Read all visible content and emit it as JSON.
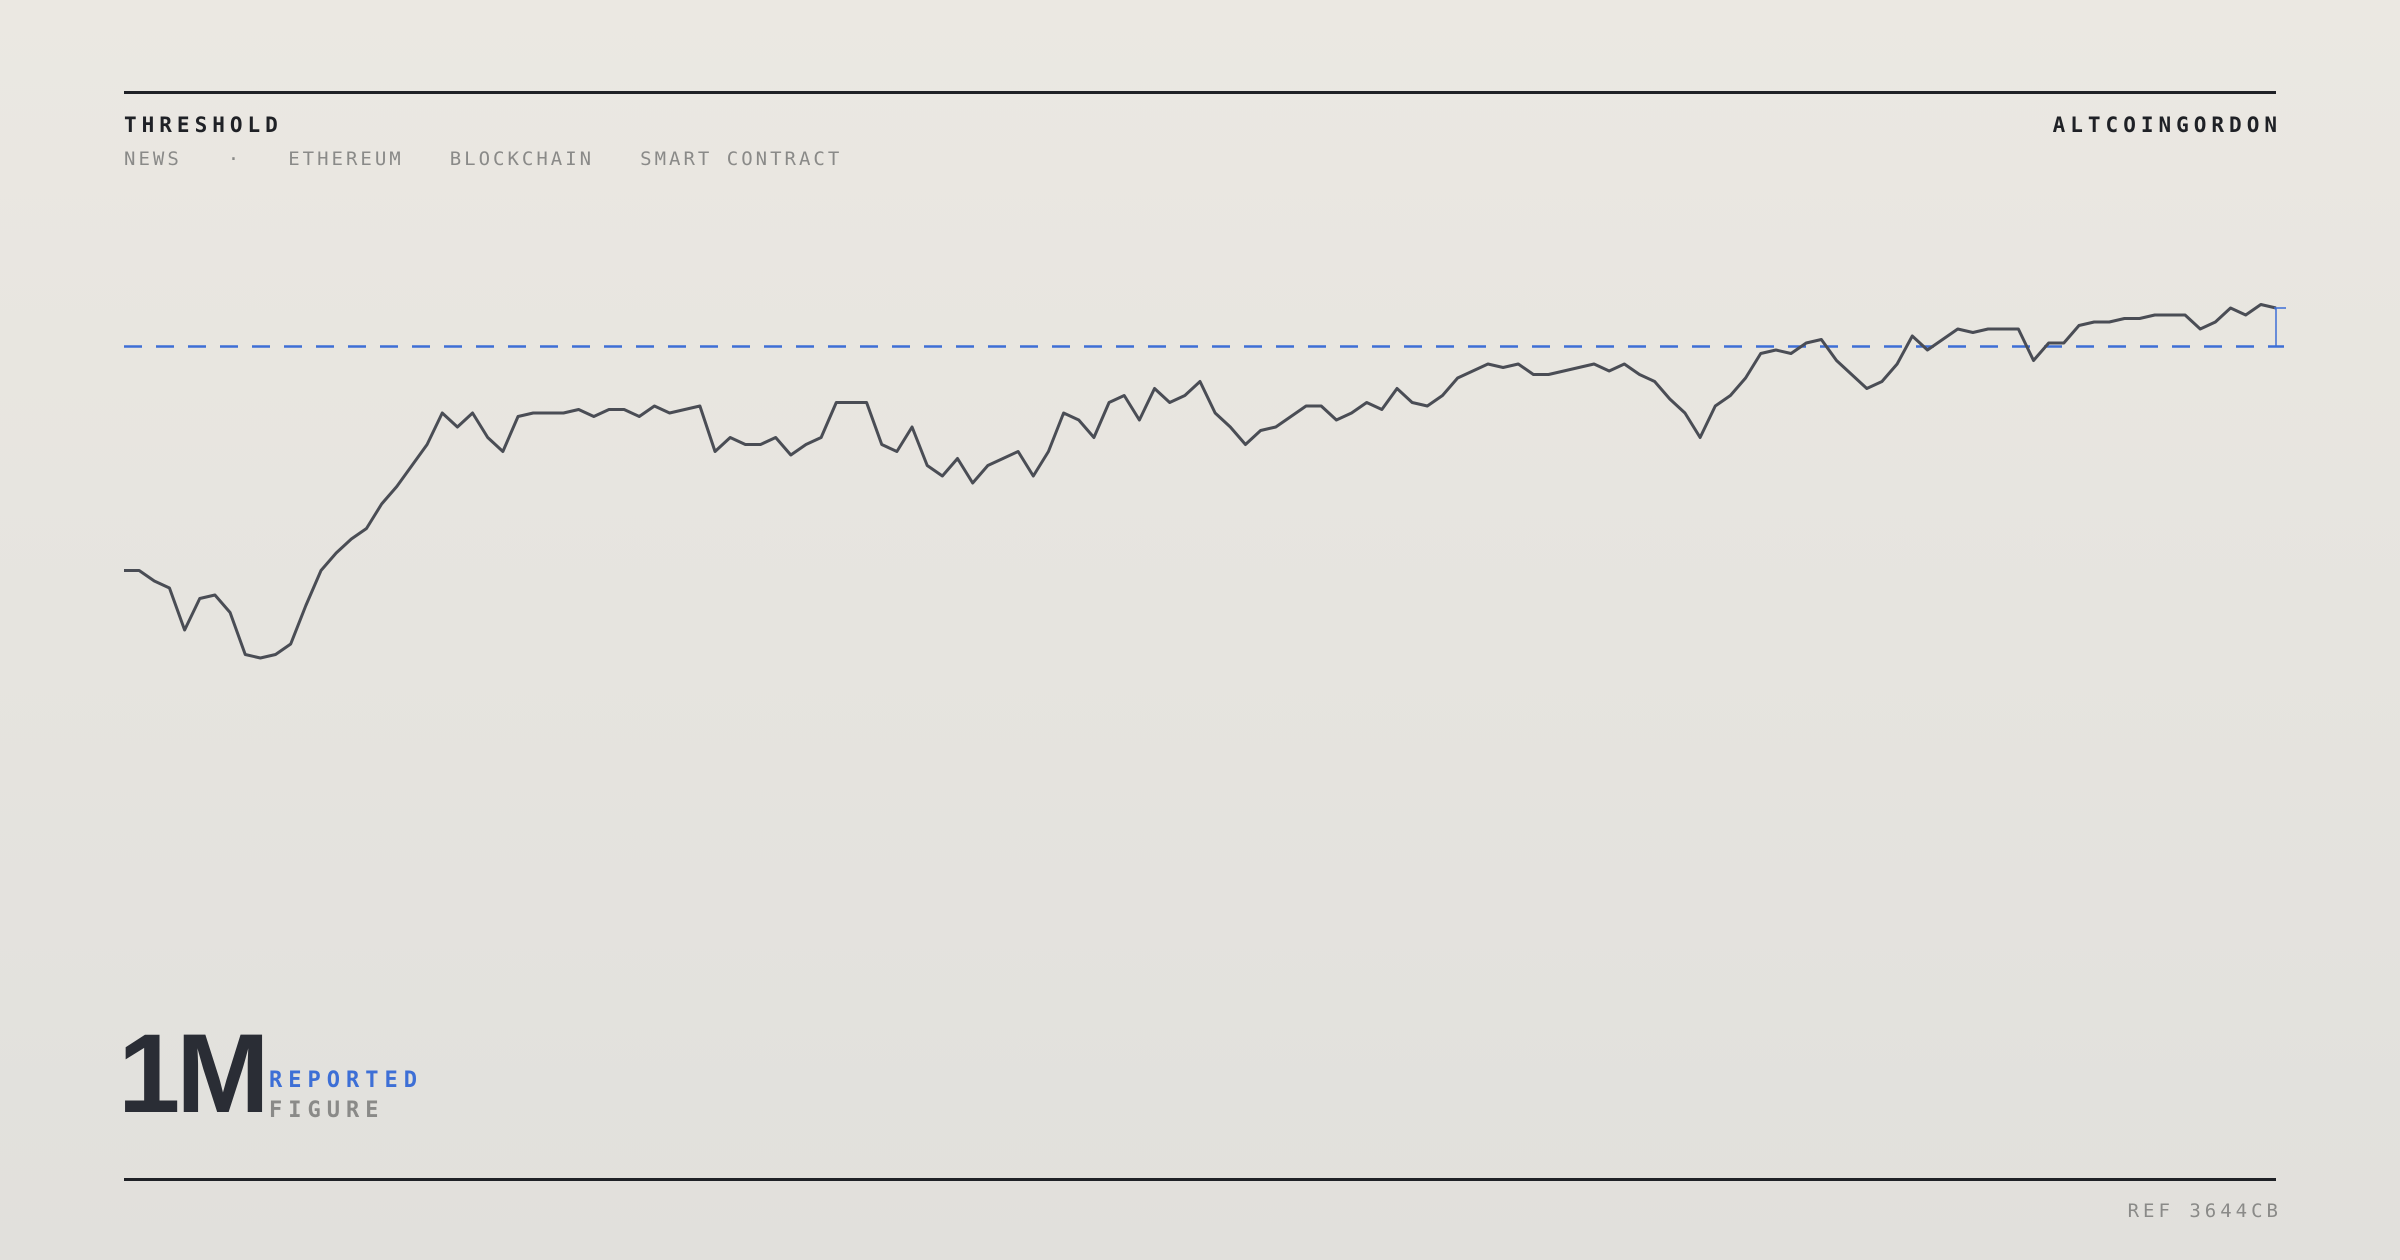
{
  "header": {
    "title": "THRESHOLD",
    "tags": [
      "NEWS",
      "·",
      "ETHEREUM",
      "BLOCKCHAIN",
      "SMART CONTRACT"
    ],
    "brand": "ALTCOINGORDON"
  },
  "chart_data": {
    "type": "line",
    "ylim": [
      0,
      120
    ],
    "threshold": {
      "value": 101,
      "color": "#3d6fd6"
    },
    "series": [
      {
        "color": "#4a4d55",
        "values": [
          37,
          37,
          34,
          32,
          20,
          29,
          30,
          25,
          13,
          12,
          13,
          16,
          27,
          37,
          42,
          46,
          49,
          56,
          61,
          67,
          73,
          82,
          78,
          82,
          75,
          71,
          81,
          82,
          82,
          82,
          83,
          81,
          83,
          83,
          81,
          84,
          82,
          83,
          84,
          71,
          75,
          73,
          73,
          75,
          70,
          73,
          75,
          85,
          85,
          85,
          73,
          71,
          78,
          67,
          64,
          69,
          62,
          67,
          69,
          71,
          64,
          71,
          82,
          80,
          75,
          85,
          87,
          80,
          89,
          85,
          87,
          91,
          82,
          78,
          73,
          77,
          78,
          81,
          84,
          84,
          80,
          82,
          85,
          83,
          89,
          85,
          84,
          87,
          92,
          94,
          96,
          95,
          96,
          93,
          93,
          94,
          95,
          96,
          94,
          96,
          93,
          91,
          86,
          82,
          75,
          84,
          87,
          92,
          99,
          100,
          99,
          102,
          103,
          97,
          93,
          89,
          91,
          96,
          104,
          100,
          103,
          106,
          105,
          106,
          106,
          106,
          97,
          102,
          102,
          107,
          108,
          108,
          109,
          109,
          110,
          110,
          110,
          106,
          108,
          112,
          110,
          113,
          112
        ]
      }
    ]
  },
  "figure": {
    "value": "1M",
    "label1": "REPORTED",
    "label2": "FIGURE"
  },
  "footer": {
    "ref": "REF 3644CB"
  }
}
